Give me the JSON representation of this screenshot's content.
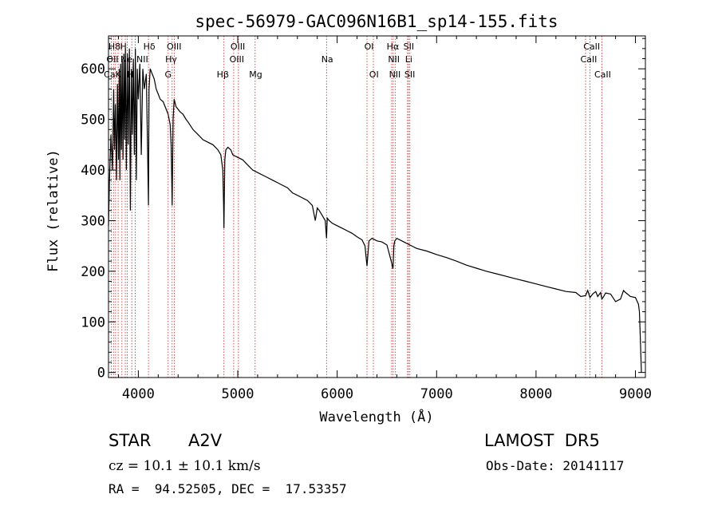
{
  "chart_data": {
    "type": "line",
    "title": "spec-56979-GAC096N16B1_sp14-155.fits",
    "xlabel": "Wavelength (Å)",
    "ylabel": "Flux (relative)",
    "xlim": [
      3700,
      9100
    ],
    "ylim": [
      -10,
      665
    ],
    "x_ticks": [
      4000,
      5000,
      6000,
      7000,
      8000,
      9000
    ],
    "y_ticks": [
      0,
      100,
      200,
      300,
      400,
      500,
      600
    ],
    "grid": false,
    "series": [
      {
        "x": [
          3700,
          3710,
          3725,
          3740,
          3752,
          3760,
          3770,
          3780,
          3790,
          3800,
          3808,
          3815,
          3822,
          3830,
          3838,
          3846,
          3855,
          3862,
          3870,
          3880,
          3889,
          3898,
          3910,
          3920,
          3930,
          3940,
          3950,
          3960,
          3970,
          3980,
          3990,
          4000,
          4015,
          4030,
          4045,
          4060,
          4080,
          4095,
          4102,
          4108,
          4120,
          4140,
          4160,
          4180,
          4200,
          4220,
          4250,
          4280,
          4300,
          4320,
          4330,
          4335,
          4340,
          4345,
          4350,
          4360,
          4380,
          4400,
          4420,
          4450,
          4480,
          4500,
          4550,
          4600,
          4650,
          4700,
          4750,
          4800,
          4830,
          4850,
          4858,
          4861,
          4865,
          4870,
          4880,
          4900,
          4930,
          4950,
          5000,
          5050,
          5100,
          5150,
          5200,
          5250,
          5300,
          5350,
          5400,
          5450,
          5500,
          5550,
          5600,
          5650,
          5700,
          5750,
          5780,
          5800,
          5820,
          5850,
          5880,
          5893,
          5900,
          5920,
          5950,
          6000,
          6050,
          6100,
          6150,
          6200,
          6250,
          6280,
          6300,
          6320,
          6350,
          6400,
          6450,
          6500,
          6530,
          6550,
          6560,
          6563,
          6566,
          6570,
          6580,
          6600,
          6650,
          6700,
          6750,
          6800,
          6900,
          7000,
          7100,
          7200,
          7300,
          7400,
          7500,
          7600,
          7700,
          7800,
          7900,
          8000,
          8100,
          8200,
          8300,
          8400,
          8450,
          8498,
          8520,
          8542,
          8570,
          8600,
          8620,
          8650,
          8662,
          8680,
          8700,
          8750,
          8800,
          8850,
          8880,
          8900,
          8950,
          9000,
          9030,
          9040,
          9050,
          9060
        ],
        "values": [
          290,
          380,
          470,
          400,
          560,
          440,
          530,
          380,
          570,
          420,
          600,
          380,
          610,
          440,
          620,
          420,
          630,
          460,
          640,
          400,
          630,
          450,
          640,
          320,
          600,
          470,
          620,
          430,
          640,
          380,
          600,
          540,
          610,
          430,
          600,
          560,
          590,
          420,
          330,
          560,
          600,
          590,
          580,
          560,
          550,
          540,
          535,
          520,
          510,
          490,
          450,
          400,
          330,
          420,
          500,
          540,
          525,
          520,
          515,
          510,
          500,
          495,
          480,
          470,
          460,
          455,
          450,
          440,
          430,
          400,
          330,
          285,
          350,
          420,
          440,
          445,
          440,
          430,
          425,
          420,
          410,
          400,
          395,
          390,
          385,
          380,
          375,
          370,
          365,
          355,
          350,
          345,
          340,
          330,
          300,
          325,
          320,
          310,
          300,
          265,
          305,
          300,
          295,
          290,
          285,
          280,
          275,
          268,
          262,
          250,
          210,
          260,
          265,
          260,
          258,
          252,
          230,
          215,
          205,
          210,
          230,
          250,
          260,
          265,
          260,
          255,
          250,
          245,
          240,
          233,
          227,
          220,
          212,
          206,
          200,
          195,
          190,
          185,
          180,
          175,
          170,
          165,
          160,
          158,
          150,
          152,
          162,
          148,
          155,
          160,
          150,
          158,
          145,
          150,
          157,
          155,
          140,
          145,
          162,
          158,
          150,
          148,
          135,
          120,
          60,
          0
        ]
      }
    ],
    "lines": [
      {
        "name": "Hδ",
        "wl": 4102
      },
      {
        "name": "Hγ",
        "wl": 4340
      },
      {
        "name": "Hβ",
        "wl": 4861
      },
      {
        "name": "Hα",
        "wl": 6563
      }
    ]
  },
  "line_labels": {
    "row1": [
      "H8",
      "H",
      "Hδ",
      "OIII",
      "OIII",
      "OI",
      "Hα",
      "SII",
      "CaII"
    ],
    "row2": [
      "OII",
      "Ne",
      "NII",
      "Hγ",
      "OIII",
      "Na",
      "NII",
      "Li",
      "CaII"
    ],
    "row3": [
      "CaK",
      "H",
      "G",
      "Hβ",
      "Mg",
      "OI",
      "NII",
      "SII",
      "CaII"
    ]
  },
  "info": {
    "object_type": "STAR",
    "subclass": "A2V",
    "survey": "LAMOST  DR5",
    "redshift": "cz = 10.1 ± 10.1 km/s",
    "obs_date": "Obs-Date: 20141117",
    "coords": "RA =  94.52505, DEC =  17.53357"
  },
  "colors": {
    "spectrum": "#000000",
    "line_markers": "#cc2222",
    "background": "#ffffff"
  }
}
